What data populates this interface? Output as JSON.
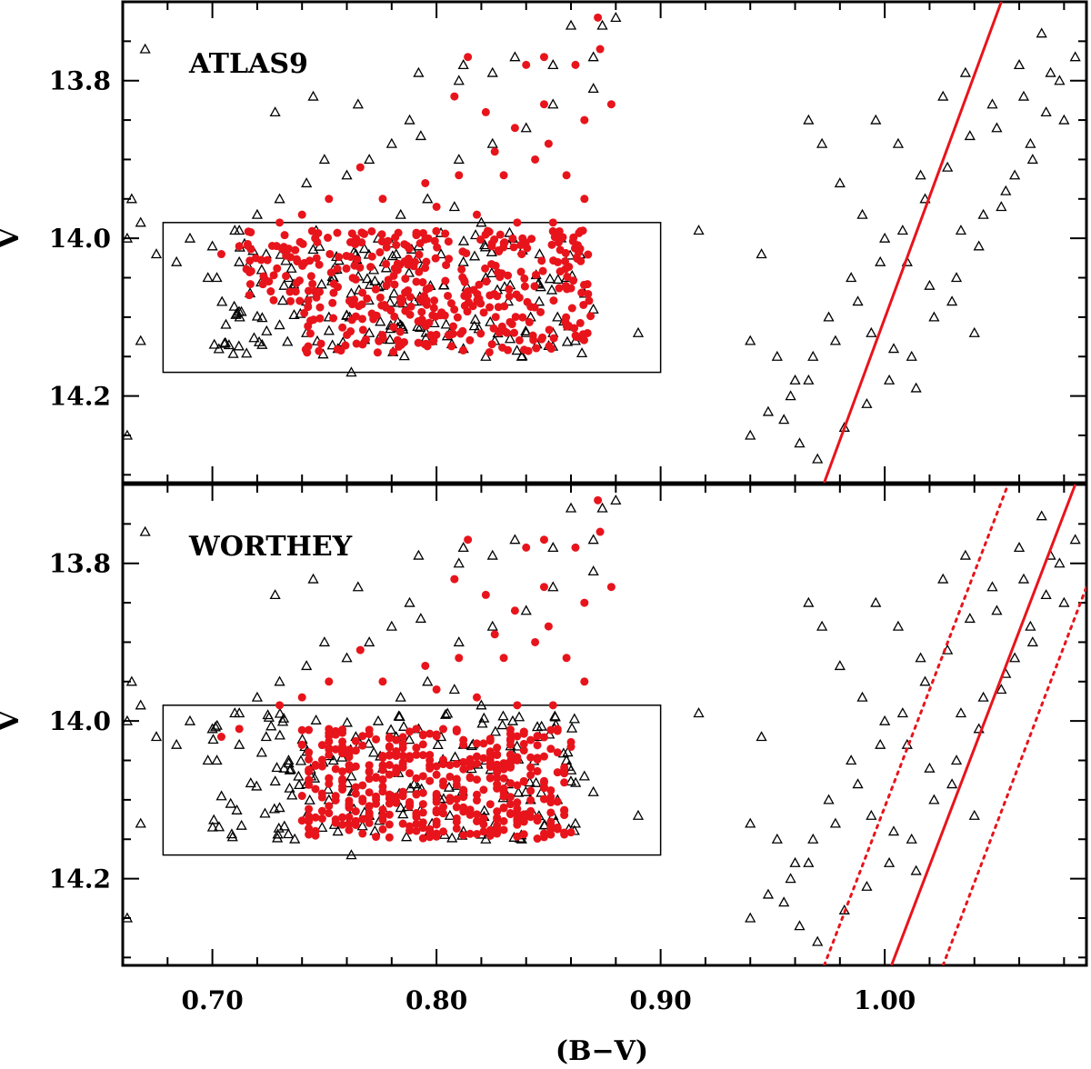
{
  "chart_data": [
    {
      "type": "scatter",
      "panel": "top",
      "label": "ATLAS9",
      "xlabel": "(B−V)",
      "ylabel": "V",
      "xlim": [
        0.66,
        1.09
      ],
      "ylim": [
        14.31,
        13.7
      ],
      "y_inverted": true,
      "xticks": [
        0.7,
        0.8,
        0.9,
        1.0
      ],
      "yticks": [
        13.8,
        14.0,
        14.2
      ],
      "box": {
        "x0": 0.678,
        "x1": 0.9,
        "y0": 13.98,
        "y1": 14.17
      },
      "model_line": {
        "style": "solid",
        "color": "#e8141b",
        "points": [
          [
            0.973,
            14.31
          ],
          [
            1.052,
            13.7
          ]
        ]
      },
      "series": [
        {
          "name": "observed stars",
          "marker": "triangle-open",
          "color": "#000000"
        },
        {
          "name": "synthetic CMD",
          "marker": "filled-circle",
          "color": "#e8141b"
        }
      ]
    },
    {
      "type": "scatter",
      "panel": "bottom",
      "label": "WORTHEY",
      "xlabel": "(B−V)",
      "ylabel": "V",
      "xlim": [
        0.66,
        1.09
      ],
      "ylim": [
        14.31,
        13.7
      ],
      "y_inverted": true,
      "xticks": [
        0.7,
        0.8,
        0.9,
        1.0
      ],
      "yticks": [
        13.8,
        14.0,
        14.2
      ],
      "box": {
        "x0": 0.678,
        "x1": 0.9,
        "y0": 13.98,
        "y1": 14.17
      },
      "model_line": {
        "style": "solid",
        "color": "#e8141b",
        "points": [
          [
            1.003,
            14.31
          ],
          [
            1.085,
            13.7
          ]
        ]
      },
      "bound_lines": [
        {
          "style": "dotted",
          "color": "#e8141b",
          "points": [
            [
              0.973,
              14.31
            ],
            [
              1.055,
              13.7
            ]
          ]
        },
        {
          "style": "dotted",
          "color": "#e8141b",
          "points": [
            [
              1.026,
              14.31
            ],
            [
              1.09,
              13.83
            ]
          ]
        }
      ],
      "series": [
        {
          "name": "observed stars",
          "marker": "triangle-open",
          "color": "#000000"
        },
        {
          "name": "synthetic CMD",
          "marker": "filled-circle",
          "color": "#e8141b"
        }
      ]
    }
  ],
  "observed": [
    [
      0.86,
      13.73
    ],
    [
      0.874,
      13.73
    ],
    [
      0.88,
      13.72
    ],
    [
      0.87,
      13.77
    ],
    [
      0.852,
      13.78
    ],
    [
      0.835,
      13.77
    ],
    [
      0.825,
      13.79
    ],
    [
      0.81,
      13.8
    ],
    [
      0.792,
      13.79
    ],
    [
      0.87,
      13.81
    ],
    [
      0.852,
      13.83
    ],
    [
      0.84,
      13.86
    ],
    [
      0.825,
      13.88
    ],
    [
      0.81,
      13.9
    ],
    [
      0.793,
      13.87
    ],
    [
      0.78,
      13.88
    ],
    [
      0.77,
      13.9
    ],
    [
      0.76,
      13.92
    ],
    [
      0.75,
      13.9
    ],
    [
      0.742,
      13.93
    ],
    [
      0.73,
      13.95
    ],
    [
      0.72,
      13.97
    ],
    [
      0.712,
      13.99
    ],
    [
      0.7,
      14.01
    ],
    [
      0.69,
      14.0
    ],
    [
      0.702,
      14.05
    ],
    [
      0.712,
      14.03
    ],
    [
      0.722,
      14.04
    ],
    [
      0.732,
      14.06
    ],
    [
      0.742,
      14.08
    ],
    [
      0.752,
      14.1
    ],
    [
      0.762,
      14.07
    ],
    [
      0.772,
      14.04
    ],
    [
      0.782,
      14.02
    ],
    [
      0.792,
      14.01
    ],
    [
      0.802,
      14.02
    ],
    [
      0.812,
      14.03
    ],
    [
      0.822,
      14.05
    ],
    [
      0.832,
      14.08
    ],
    [
      0.842,
      14.1
    ],
    [
      0.852,
      14.12
    ],
    [
      0.862,
      14.13
    ],
    [
      0.87,
      14.09
    ],
    [
      0.858,
      14.05
    ],
    [
      0.846,
      14.02
    ],
    [
      0.834,
      14.0
    ],
    [
      0.82,
      13.98
    ],
    [
      0.808,
      13.96
    ],
    [
      0.796,
      13.95
    ],
    [
      0.784,
      13.97
    ],
    [
      0.774,
      14.0
    ],
    [
      0.764,
      14.02
    ],
    [
      0.754,
      14.05
    ],
    [
      0.744,
      14.07
    ],
    [
      0.734,
      14.05
    ],
    [
      0.724,
      14.02
    ],
    [
      0.73,
      14.11
    ],
    [
      0.742,
      14.12
    ],
    [
      0.756,
      14.14
    ],
    [
      0.77,
      14.12
    ],
    [
      0.784,
      14.11
    ],
    [
      0.798,
      14.13
    ],
    [
      0.812,
      14.14
    ],
    [
      0.826,
      14.13
    ],
    [
      0.84,
      14.12
    ],
    [
      0.854,
      14.1
    ],
    [
      0.866,
      14.07
    ],
    [
      0.838,
      14.15
    ],
    [
      0.822,
      14.15
    ],
    [
      0.806,
      14.12
    ],
    [
      0.79,
      14.08
    ],
    [
      0.776,
      14.06
    ],
    [
      0.762,
      14.17
    ],
    [
      0.662,
      14.0
    ],
    [
      0.668,
      13.98
    ],
    [
      0.675,
      14.02
    ],
    [
      0.664,
      13.95
    ],
    [
      0.67,
      13.76
    ],
    [
      0.668,
      14.13
    ],
    [
      0.662,
      14.25
    ],
    [
      0.684,
      14.03
    ],
    [
      0.698,
      14.05
    ],
    [
      0.71,
      13.99
    ],
    [
      0.728,
      13.84
    ],
    [
      0.745,
      13.82
    ],
    [
      0.765,
      13.83
    ],
    [
      0.788,
      13.85
    ],
    [
      0.812,
      13.78
    ],
    [
      0.89,
      14.12
    ],
    [
      0.917,
      13.99
    ],
    [
      0.94,
      14.13
    ],
    [
      0.945,
      14.02
    ],
    [
      0.952,
      14.15
    ],
    [
      0.96,
      14.18
    ],
    [
      0.966,
      13.85
    ],
    [
      0.972,
      13.88
    ],
    [
      0.98,
      13.93
    ],
    [
      0.99,
      13.97
    ],
    [
      1.0,
      14.0
    ],
    [
      1.01,
      14.03
    ],
    [
      1.02,
      14.06
    ],
    [
      1.03,
      14.08
    ],
    [
      1.04,
      14.12
    ],
    [
      0.985,
      14.05
    ],
    [
      0.975,
      14.1
    ],
    [
      0.968,
      14.15
    ],
    [
      0.958,
      14.2
    ],
    [
      0.948,
      14.22
    ],
    [
      0.94,
      14.25
    ],
    [
      0.962,
      14.26
    ],
    [
      0.97,
      14.28
    ],
    [
      0.982,
      14.24
    ],
    [
      0.992,
      14.21
    ],
    [
      1.002,
      14.18
    ],
    [
      1.012,
      14.15
    ],
    [
      1.022,
      14.1
    ],
    [
      1.032,
      14.05
    ],
    [
      1.042,
      14.01
    ],
    [
      1.052,
      13.96
    ],
    [
      1.058,
      13.92
    ],
    [
      1.065,
      13.88
    ],
    [
      1.072,
      13.84
    ],
    [
      1.078,
      13.8
    ],
    [
      1.085,
      13.77
    ],
    [
      1.07,
      13.74
    ],
    [
      1.06,
      13.78
    ],
    [
      1.048,
      13.83
    ],
    [
      1.038,
      13.87
    ],
    [
      1.028,
      13.91
    ],
    [
      1.018,
      13.95
    ],
    [
      1.008,
      13.99
    ],
    [
      0.998,
      14.03
    ],
    [
      0.988,
      14.08
    ],
    [
      0.978,
      14.13
    ],
    [
      0.966,
      14.18
    ],
    [
      0.955,
      14.23
    ],
    [
      1.05,
      13.86
    ],
    [
      1.062,
      13.82
    ],
    [
      1.074,
      13.79
    ],
    [
      1.08,
      13.85
    ],
    [
      1.066,
      13.9
    ],
    [
      1.054,
      13.94
    ],
    [
      1.044,
      13.97
    ],
    [
      1.034,
      13.99
    ],
    [
      0.996,
      13.85
    ],
    [
      1.006,
      13.88
    ],
    [
      1.016,
      13.92
    ],
    [
      1.026,
      13.82
    ],
    [
      1.036,
      13.79
    ],
    [
      0.994,
      14.12
    ],
    [
      1.004,
      14.14
    ],
    [
      1.014,
      14.19
    ]
  ],
  "synthetic": [
    [
      0.872,
      13.72
    ],
    [
      0.873,
      13.76
    ],
    [
      0.862,
      13.78
    ],
    [
      0.848,
      13.77
    ],
    [
      0.84,
      13.78
    ],
    [
      0.814,
      13.77
    ],
    [
      0.808,
      13.82
    ],
    [
      0.822,
      13.84
    ],
    [
      0.835,
      13.86
    ],
    [
      0.848,
      13.83
    ],
    [
      0.878,
      13.83
    ],
    [
      0.866,
      13.85
    ],
    [
      0.85,
      13.88
    ],
    [
      0.826,
      13.89
    ],
    [
      0.81,
      13.92
    ],
    [
      0.795,
      13.93
    ],
    [
      0.766,
      13.91
    ],
    [
      0.752,
      13.95
    ],
    [
      0.776,
      13.95
    ],
    [
      0.8,
      13.96
    ],
    [
      0.818,
      13.97
    ],
    [
      0.836,
      13.98
    ],
    [
      0.852,
      13.98
    ],
    [
      0.866,
      13.95
    ],
    [
      0.858,
      13.92
    ],
    [
      0.844,
      13.9
    ],
    [
      0.83,
      13.92
    ],
    [
      0.74,
      13.97
    ],
    [
      0.73,
      13.98
    ],
    [
      0.712,
      14.01
    ],
    [
      0.704,
      14.02
    ]
  ]
}
